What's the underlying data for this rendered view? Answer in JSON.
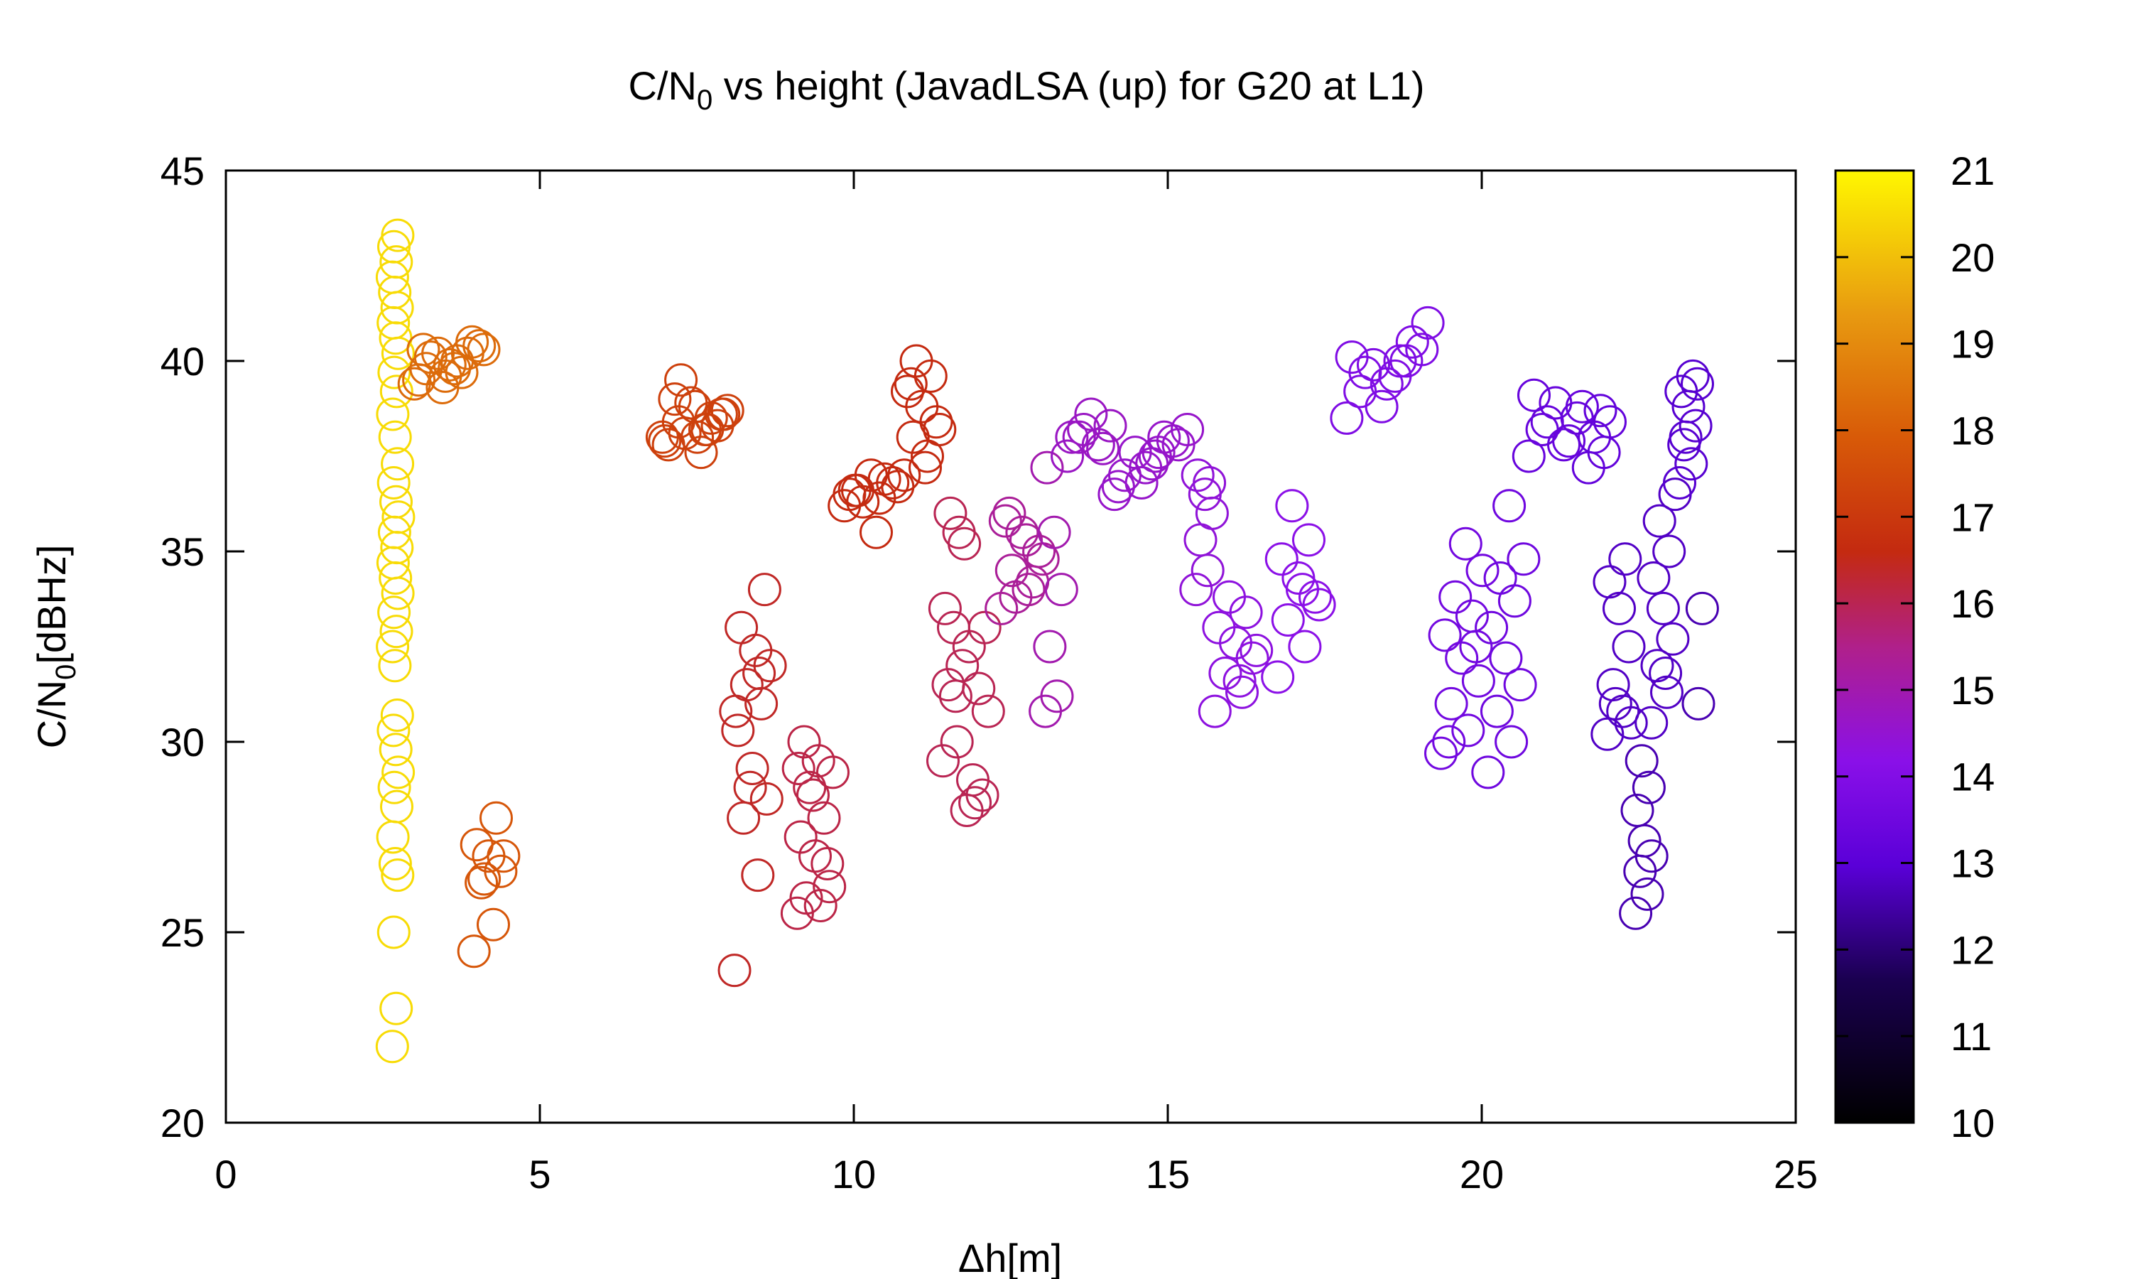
{
  "chart_data": {
    "type": "scatter",
    "title_main": "C/N",
    "title_sub": "0",
    "title_rest": " vs height (JavadLSA (up) for G20 at L1)",
    "xlabel": "Δh[m]",
    "ylabel_main": "C/N",
    "ylabel_sub": "0",
    "ylabel_rest": "[dBHz]",
    "xlim": [
      0,
      25
    ],
    "ylim": [
      20,
      45
    ],
    "xticks": [
      0,
      5,
      10,
      15,
      20,
      25
    ],
    "yticks": [
      20,
      25,
      30,
      35,
      40,
      45
    ],
    "xtick_labels": [
      "0",
      "5",
      "10",
      "15",
      "20",
      "25"
    ],
    "ytick_labels": [
      "20",
      "25",
      "30",
      "35",
      "40",
      "45"
    ],
    "colorbar": {
      "range": [
        10,
        21
      ],
      "ticks": [
        10,
        11,
        12,
        13,
        14,
        15,
        16,
        17,
        18,
        19,
        20,
        21
      ],
      "tick_labels": [
        "10",
        "11",
        "12",
        "13",
        "14",
        "15",
        "16",
        "17",
        "18",
        "19",
        "20",
        "21"
      ],
      "palette": "black-purple-red-orange-yellow"
    },
    "marker": "open-circle",
    "clusters": [
      {
        "x": 2.7,
        "xs": 0.05,
        "y": [
          22.0,
          23.0,
          25.0,
          26.5,
          26.8,
          27.5,
          28.3,
          28.8,
          29.2,
          29.8,
          30.3,
          30.7,
          32.0,
          32.5,
          32.9,
          33.4,
          33.9,
          34.3,
          34.7,
          35.1,
          35.5,
          35.9,
          36.3,
          36.8,
          37.3,
          38.0,
          38.6,
          39.2,
          39.7,
          40.2,
          40.6,
          41.0,
          41.4,
          41.8,
          42.2,
          42.6,
          43.0,
          43.3
        ],
        "c": 20.5
      },
      {
        "x": 3.4,
        "xs": 0.4,
        "y": [
          39.4,
          39.6,
          39.8,
          40.0,
          40.2,
          39.5,
          39.9,
          40.1,
          39.7,
          39.3,
          40.3,
          39.8
        ],
        "c": 18.3
      },
      {
        "x": 4.0,
        "xs": 0.15,
        "y": [
          40.2,
          40.4,
          40.5,
          40.3
        ],
        "c": 18.3
      },
      {
        "x": 4.2,
        "xs": 0.25,
        "y": [
          24.5,
          25.2,
          26.3,
          26.6,
          27.0,
          27.3,
          28.0,
          26.4,
          27.0
        ],
        "c": 17.8
      },
      {
        "x": 7.5,
        "xs": 0.55,
        "y": [
          38.0,
          38.2,
          38.4,
          38.6,
          38.8,
          37.8,
          38.5,
          38.1,
          38.7,
          37.6,
          39.0,
          38.3,
          38.9,
          37.9,
          38.2,
          39.5,
          38.6,
          38.0
        ],
        "c": 17.2
      },
      {
        "x": 8.4,
        "xs": 0.3,
        "y": [
          24.0,
          26.5,
          28.0,
          28.5,
          29.3,
          30.3,
          31.0,
          31.5,
          32.0,
          32.4,
          33.0,
          34.0,
          28.8,
          30.8,
          31.8
        ],
        "c": 16.4
      },
      {
        "x": 9.4,
        "xs": 0.3,
        "y": [
          25.5,
          25.7,
          25.9,
          26.2,
          27.0,
          27.5,
          28.0,
          28.8,
          29.2,
          29.5,
          30.0,
          26.8,
          28.6,
          29.3
        ],
        "c": 16.1
      },
      {
        "x": 10.3,
        "xs": 0.45,
        "y": [
          36.2,
          36.4,
          36.6,
          36.8,
          37.0,
          36.5,
          36.9,
          36.3,
          36.7,
          35.5,
          36.6
        ],
        "c": 16.6
      },
      {
        "x": 11.1,
        "xs": 0.3,
        "y": [
          37.0,
          37.5,
          38.0,
          38.4,
          38.8,
          39.2,
          39.6,
          40.0,
          38.2,
          37.2,
          39.4
        ],
        "c": 16.6
      },
      {
        "x": 11.6,
        "xs": 0.18,
        "y": [
          29.5,
          30.0,
          31.5,
          32.0,
          33.0,
          33.5,
          35.5,
          36.0,
          35.2,
          31.2
        ],
        "c": 16.0
      },
      {
        "x": 12.0,
        "xs": 0.2,
        "y": [
          28.2,
          28.6,
          29.0,
          30.8,
          31.4,
          32.5,
          33.0,
          28.4
        ],
        "c": 16.0
      },
      {
        "x": 12.7,
        "xs": 0.35,
        "y": [
          33.5,
          34.0,
          34.5,
          35.0,
          35.5,
          35.8,
          34.2,
          33.8,
          34.8,
          35.3,
          36.0
        ],
        "c": 15.3
      },
      {
        "x": 13.2,
        "xs": 0.15,
        "y": [
          30.8,
          31.2,
          32.5,
          34.0,
          35.5,
          37.2
        ],
        "c": 15.0
      },
      {
        "x": 13.8,
        "xs": 0.4,
        "y": [
          37.5,
          37.8,
          38.0,
          38.3,
          38.6,
          38.0,
          37.7,
          38.2
        ],
        "c": 14.7
      },
      {
        "x": 14.5,
        "xs": 0.35,
        "y": [
          36.5,
          36.8,
          37.0,
          37.3,
          37.6,
          36.7,
          37.2
        ],
        "c": 14.6
      },
      {
        "x": 15.1,
        "xs": 0.3,
        "y": [
          37.5,
          37.8,
          38.0,
          38.2,
          37.9,
          37.6
        ],
        "c": 14.6
      },
      {
        "x": 15.6,
        "xs": 0.15,
        "y": [
          34.0,
          34.5,
          35.3,
          36.0,
          36.5,
          37.0,
          36.8
        ],
        "c": 14.4
      },
      {
        "x": 16.1,
        "xs": 0.35,
        "y": [
          30.8,
          31.3,
          31.8,
          32.2,
          32.6,
          33.0,
          33.4,
          33.8,
          32.4,
          31.6
        ],
        "c": 14.3
      },
      {
        "x": 17.1,
        "xs": 0.35,
        "y": [
          31.7,
          32.5,
          33.2,
          33.8,
          34.3,
          34.8,
          35.3,
          36.2,
          33.6,
          34.0
        ],
        "c": 14.2
      },
      {
        "x": 18.3,
        "xs": 0.45,
        "y": [
          38.5,
          38.8,
          39.2,
          39.6,
          39.9,
          40.1,
          39.4,
          39.7,
          40.0
        ],
        "c": 13.9
      },
      {
        "x": 19.0,
        "xs": 0.2,
        "y": [
          40.0,
          40.3,
          40.5,
          41.0
        ],
        "c": 13.9
      },
      {
        "x": 19.7,
        "xs": 0.35,
        "y": [
          29.7,
          30.3,
          31.0,
          31.6,
          32.2,
          32.8,
          33.3,
          33.8,
          34.5,
          35.2,
          30.0,
          32.5
        ],
        "c": 13.6
      },
      {
        "x": 20.4,
        "xs": 0.3,
        "y": [
          29.2,
          30.0,
          30.8,
          31.5,
          32.2,
          33.0,
          33.7,
          34.3,
          34.8,
          36.2
        ],
        "c": 13.5
      },
      {
        "x": 21.2,
        "xs": 0.45,
        "y": [
          37.5,
          37.8,
          38.2,
          38.5,
          38.9,
          39.1,
          37.9,
          38.4,
          38.8
        ],
        "c": 13.3
      },
      {
        "x": 21.9,
        "xs": 0.2,
        "y": [
          37.2,
          37.6,
          38.0,
          38.4,
          38.7
        ],
        "c": 13.2
      },
      {
        "x": 22.2,
        "xs": 0.2,
        "y": [
          30.2,
          30.8,
          31.5,
          32.5,
          33.5,
          34.2,
          34.8,
          31.0,
          30.5
        ],
        "c": 12.8
      },
      {
        "x": 22.6,
        "xs": 0.15,
        "y": [
          25.5,
          26.0,
          26.6,
          27.0,
          27.4,
          28.2,
          28.8,
          29.5
        ],
        "c": 12.6
      },
      {
        "x": 22.9,
        "xs": 0.2,
        "y": [
          30.5,
          31.3,
          32.0,
          32.7,
          33.5,
          34.3,
          35.0,
          35.8,
          36.5,
          31.8
        ],
        "c": 12.8
      },
      {
        "x": 23.3,
        "xs": 0.15,
        "y": [
          36.8,
          37.3,
          37.8,
          38.3,
          38.8,
          39.2,
          39.6,
          38.0,
          39.4
        ],
        "c": 12.9
      },
      {
        "x": 23.5,
        "xs": 0.05,
        "y": [
          31.0,
          33.5
        ],
        "c": 12.6
      }
    ]
  }
}
